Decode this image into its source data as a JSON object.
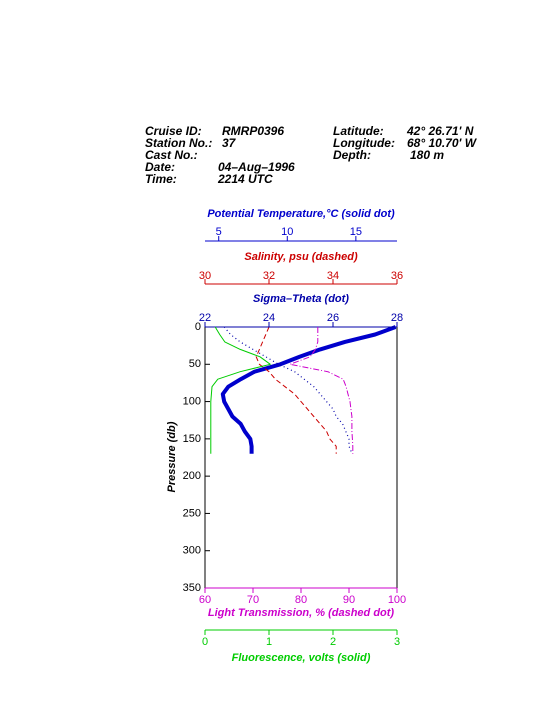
{
  "header": {
    "left": [
      {
        "label": "Cruise ID:",
        "value": "RMRP0396"
      },
      {
        "label": "Station No.:",
        "value": "37"
      },
      {
        "label": "Cast No.:"
      },
      {
        "label": "Date:",
        "value": "04–Aug–1996"
      },
      {
        "label": "Time:",
        "value": "2214 UTC"
      }
    ],
    "right": [
      {
        "label": "Latitude:",
        "value": "42° 26.71' N"
      },
      {
        "label": "Longitude:",
        "value": "68° 10.70' W"
      },
      {
        "label": "Depth:",
        "value": "180 m"
      }
    ]
  },
  "chart_data": {
    "type": "line",
    "ylabel": "Pressure (db)",
    "ylim": [
      0,
      350
    ],
    "yticks": [
      0,
      50,
      100,
      150,
      200,
      250,
      300,
      350
    ],
    "y_inverted": true,
    "pressure": [
      0,
      10,
      20,
      30,
      40,
      50,
      60,
      70,
      80,
      90,
      100,
      110,
      120,
      130,
      140,
      150,
      160,
      170
    ],
    "series": [
      {
        "label": "Potential Temperature,°C (solid dot)",
        "color": "#0000cc",
        "style": "thick",
        "axis": "top",
        "xlim": [
          4,
          18
        ],
        "xticks": [
          5,
          10,
          15
        ],
        "values": [
          17.9,
          16.4,
          14.2,
          12.4,
          10.9,
          9.5,
          7.6,
          6.6,
          5.7,
          5.3,
          5.4,
          5.7,
          6.0,
          6.6,
          6.9,
          7.3,
          7.4,
          7.4
        ]
      },
      {
        "label": "Salinity, psu  (dashed)",
        "color": "#cc0000",
        "style": "dashed",
        "axis": "top",
        "xlim": [
          30,
          36
        ],
        "xticks": [
          30,
          32,
          34,
          36
        ],
        "values": [
          32.0,
          31.9,
          31.8,
          31.7,
          31.6,
          31.7,
          32.0,
          32.2,
          32.5,
          32.8,
          33.0,
          33.2,
          33.4,
          33.6,
          33.8,
          33.9,
          34.1,
          34.1
        ]
      },
      {
        "label": "Sigma–Theta (dot)",
        "color": "#0000aa",
        "style": "dotted",
        "axis": "top",
        "xlim": [
          22,
          28
        ],
        "xticks": [
          22,
          24,
          26,
          28
        ],
        "values": [
          22.6,
          22.8,
          23.1,
          23.5,
          23.9,
          24.3,
          24.8,
          25.1,
          25.4,
          25.6,
          25.8,
          26.0,
          26.1,
          26.3,
          26.4,
          26.5,
          26.5,
          26.6
        ]
      },
      {
        "label": "Light Transmission, % (dashed dot)",
        "color": "#cc00cc",
        "style": "dashdot",
        "axis": "bottom",
        "xlim": [
          60,
          100
        ],
        "xticks": [
          60,
          70,
          80,
          90,
          100
        ],
        "values": [
          83.5,
          83.5,
          83.5,
          83.0,
          81.9,
          77.7,
          85.6,
          88.8,
          89.4,
          89.8,
          90.2,
          90.4,
          90.6,
          90.6,
          90.6,
          90.7,
          90.8,
          90.8
        ]
      },
      {
        "label": "Fluorescence, volts (solid)",
        "color": "#00cc00",
        "style": "solid",
        "axis": "bottom",
        "xlim": [
          0,
          3
        ],
        "xticks": [
          0,
          1,
          2,
          3
        ],
        "values": [
          0.16,
          0.23,
          0.31,
          0.55,
          0.86,
          1.02,
          0.55,
          0.2,
          0.11,
          0.1,
          0.09,
          0.09,
          0.09,
          0.09,
          0.09,
          0.09,
          0.09,
          0.09
        ]
      }
    ]
  }
}
